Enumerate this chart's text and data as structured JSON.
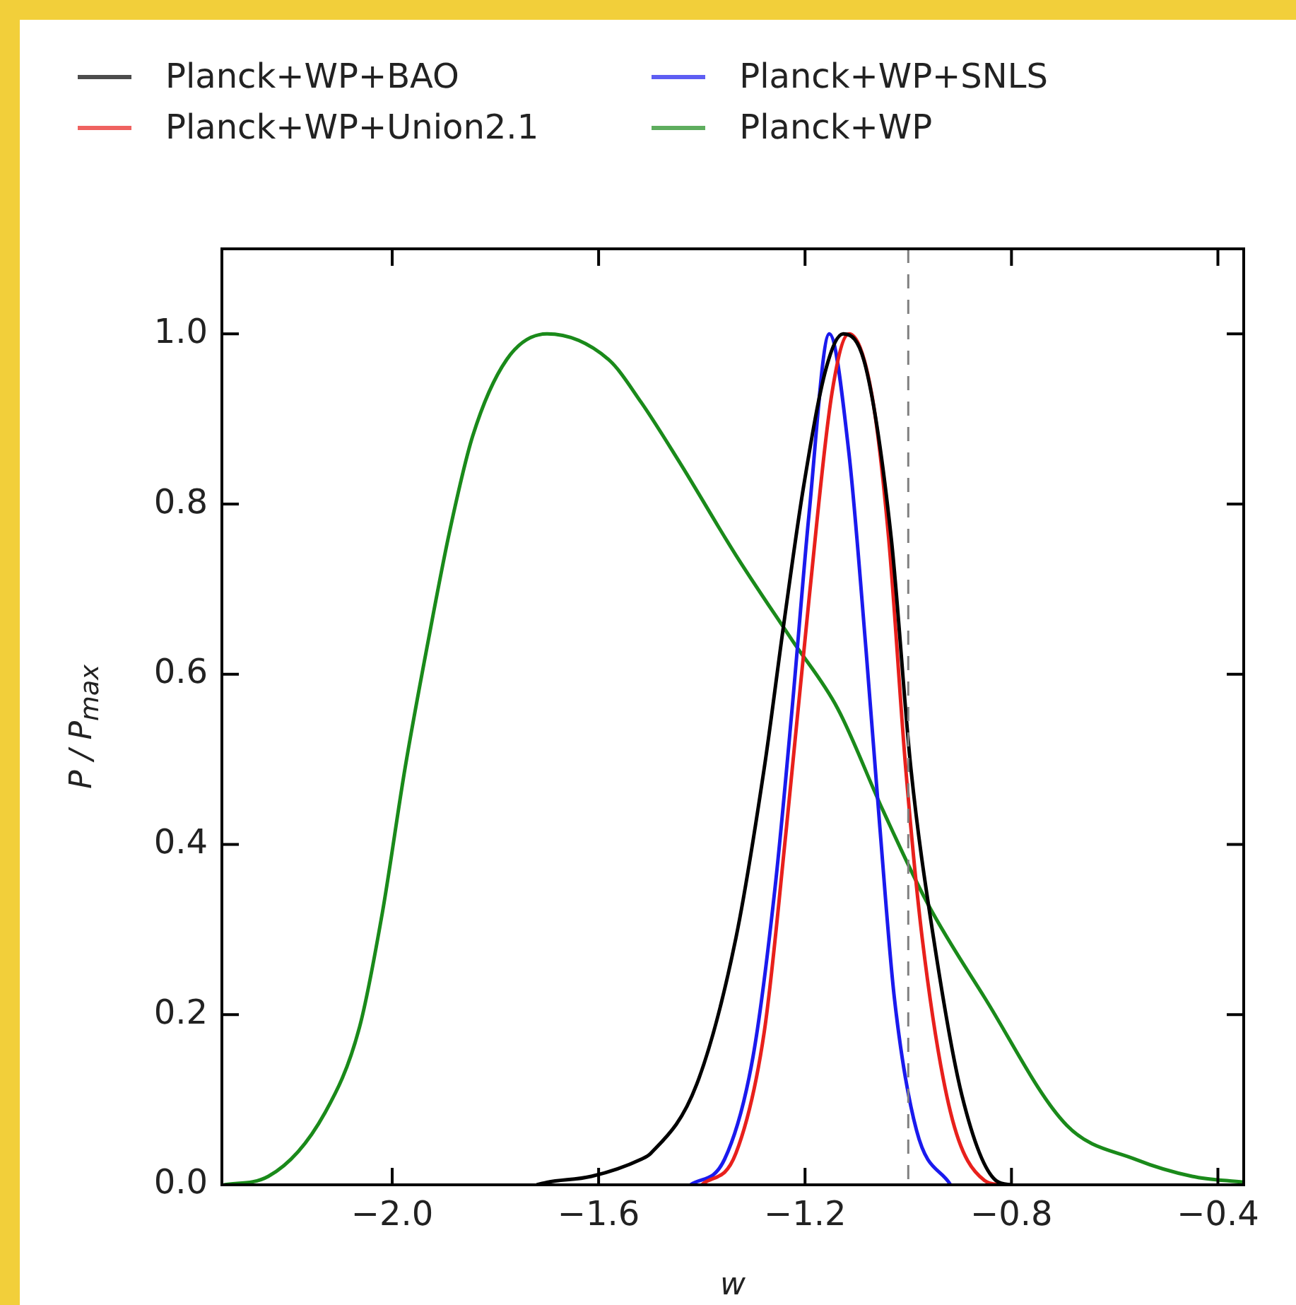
{
  "chart_data": {
    "type": "line",
    "xlabel": "w",
    "ylabel": "P / P$_{max}$",
    "xlim": [
      -2.33,
      -0.35
    ],
    "xticks": [
      {
        "value": -2.0,
        "label": "−2.0"
      },
      {
        "value": -1.6,
        "label": "−1.6"
      },
      {
        "value": -1.2,
        "label": "−1.2"
      },
      {
        "value": -0.8,
        "label": "−0.8"
      },
      {
        "value": -0.4,
        "label": "−0.4"
      }
    ],
    "ylim": [
      0,
      1.1
    ],
    "yticks": [
      {
        "value": 0,
        "label": "0.0"
      },
      {
        "value": 0.2,
        "label": "0.2"
      },
      {
        "value": 0.4,
        "label": "0.4"
      },
      {
        "value": 0.6,
        "label": "0.6"
      },
      {
        "value": 0.8,
        "label": "0.8"
      },
      {
        "value": 1.0,
        "label": "1.0"
      }
    ],
    "grid": false,
    "legend": "top",
    "marker": "none",
    "line_style": "solid",
    "ref_lines": [
      {
        "axis": "x",
        "value": -1.0,
        "color": "#808080",
        "line_style": "dashed"
      }
    ],
    "series": [
      {
        "name": "Planck+WP+BAO",
        "color": "#000000",
        "x": [
          -1.72,
          -1.7,
          -1.614,
          -1.518,
          -1.499,
          -1.41,
          -1.334,
          -1.279,
          -1.241,
          -1.203,
          -1.159,
          -1.126,
          -1.082,
          -1.033,
          -0.995,
          -0.951,
          -0.896,
          -0.83,
          -0.8
        ],
        "values": [
          0,
          0.003,
          0.01,
          0.03,
          0.037,
          0.118,
          0.29,
          0.49,
          0.66,
          0.82,
          0.96,
          1.0,
          0.96,
          0.76,
          0.49,
          0.29,
          0.105,
          0.005,
          0
        ]
      },
      {
        "name": "Planck+WP+Union2.1",
        "color": "#e8201c",
        "x": [
          -1.4,
          -1.334,
          -1.279,
          -1.236,
          -1.192,
          -1.148,
          -1.115,
          -1.071,
          -1.038,
          -1.005,
          -0.973,
          -0.918,
          -0.852,
          -0.82
        ],
        "values": [
          0,
          0.037,
          0.18,
          0.42,
          0.69,
          0.93,
          1.0,
          0.93,
          0.76,
          0.49,
          0.29,
          0.085,
          0.005,
          0
        ]
      },
      {
        "name": "Planck+WP+SNLS",
        "color": "#1a1aee",
        "x": [
          -1.422,
          -1.356,
          -1.301,
          -1.258,
          -1.225,
          -1.192,
          -1.153,
          -1.115,
          -1.082,
          -1.055,
          -1.027,
          -0.984,
          -0.918
        ],
        "values": [
          0,
          0.03,
          0.15,
          0.35,
          0.56,
          0.79,
          1.0,
          0.86,
          0.63,
          0.42,
          0.22,
          0.064,
          0
        ]
      },
      {
        "name": "Planck+WP",
        "color": "#1a8a1a",
        "x": [
          -2.326,
          -2.24,
          -2.13,
          -2.063,
          -2.019,
          -1.975,
          -1.93,
          -1.888,
          -1.844,
          -1.778,
          -1.7,
          -1.581,
          -1.518,
          -1.444,
          -1.334,
          -1.225,
          -1.137,
          -1.049,
          -0.962,
          -0.852,
          -0.693,
          -0.56,
          -0.45,
          -0.35
        ],
        "values": [
          0,
          0.01,
          0.085,
          0.186,
          0.32,
          0.49,
          0.64,
          0.77,
          0.88,
          0.97,
          1.0,
          0.97,
          0.92,
          0.85,
          0.74,
          0.64,
          0.56,
          0.44,
          0.33,
          0.22,
          0.07,
          0.03,
          0.01,
          0.003
        ]
      }
    ]
  }
}
